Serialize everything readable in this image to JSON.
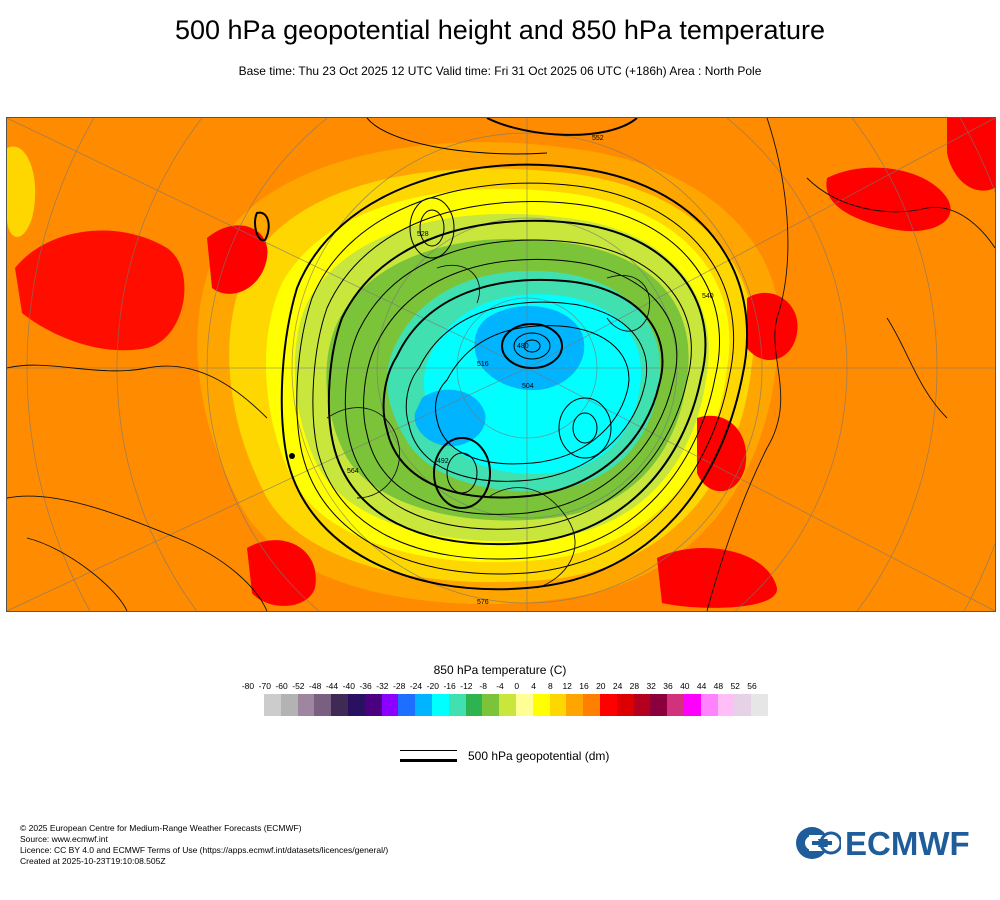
{
  "header": {
    "title": "500 hPa geopotential height and 850 hPa temperature",
    "subtitle": "Base time: Thu 23 Oct 2025 12 UTC Valid time: Fri 31 Oct 2025 06 UTC (+186h) Area : North Pole"
  },
  "map": {
    "contour_labels": [
      "552",
      "528",
      "516",
      "504",
      "492",
      "480",
      "540",
      "564",
      "576"
    ]
  },
  "legend": {
    "temperature_title": "850 hPa temperature (C)",
    "ticks": [
      "-80",
      "-70",
      "-60",
      "-52",
      "-48",
      "-44",
      "-40",
      "-36",
      "-32",
      "-28",
      "-24",
      "-20",
      "-16",
      "-12",
      "-8",
      "-4",
      "0",
      "4",
      "8",
      "12",
      "16",
      "20",
      "24",
      "28",
      "32",
      "36",
      "40",
      "44",
      "48",
      "52",
      "56"
    ],
    "colors": [
      "#e6e6e6",
      "#cccccc",
      "#b3b3b3",
      "#9e86a0",
      "#7a6080",
      "#3f2a55",
      "#2a1060",
      "#4b0082",
      "#8b00ff",
      "#1e6eff",
      "#00b4ff",
      "#00ffff",
      "#40e0b0",
      "#2db34f",
      "#7bc43a",
      "#c8e63c",
      "#ffff96",
      "#ffff00",
      "#ffd700",
      "#ffa500",
      "#ff7f00",
      "#ff0000",
      "#dc0000",
      "#b4001e",
      "#8b003c",
      "#d2327d",
      "#ff00ff",
      "#ff82ff",
      "#ffbef5",
      "#e6d2e6",
      "#e6e6e6"
    ],
    "geopotential_label": "500 hPa geopotential (dm)"
  },
  "footer": {
    "lines": [
      "© 2025 European Centre for Medium-Range Weather Forecasts (ECMWF)",
      "Source: www.ecmwf.int",
      "Licence: CC BY 4.0 and ECMWF Terms of Use (https://apps.ecmwf.int/datasets/licences/general/)",
      "Created at 2025-10-23T19:10:08.505Z"
    ],
    "logo_text": "ECMWF"
  }
}
